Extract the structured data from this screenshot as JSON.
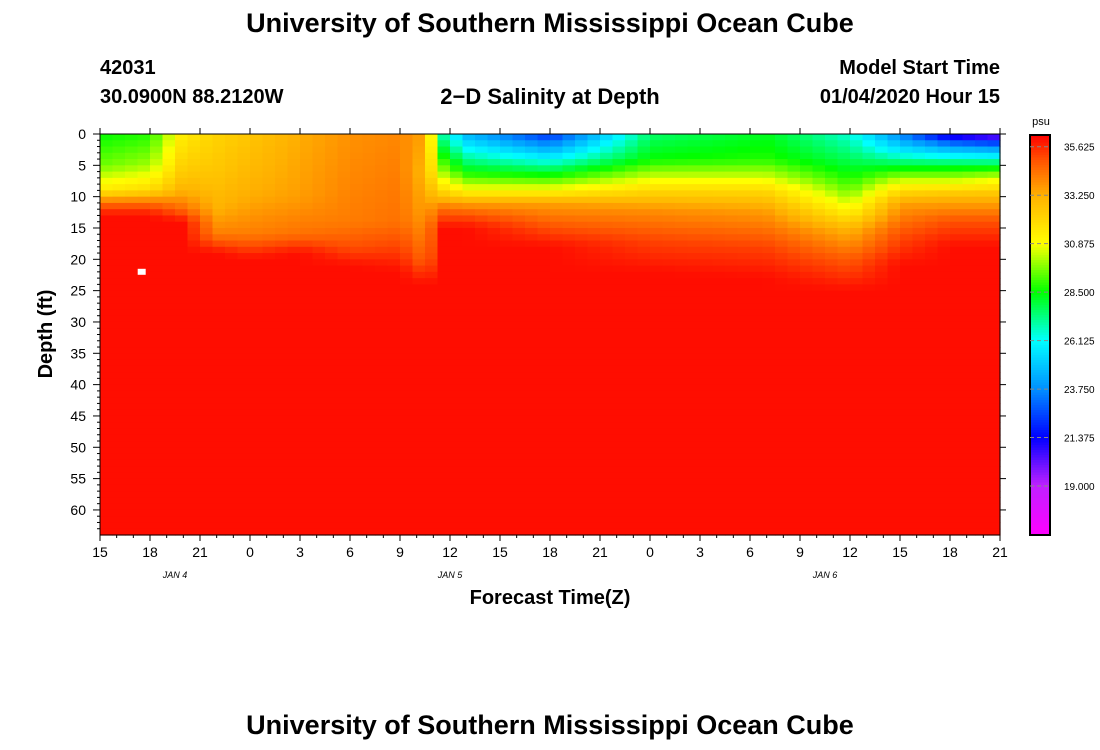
{
  "header": {
    "top_title": "University of Southern Mississippi Ocean Cube",
    "station_id": "42031",
    "station_coords": "30.0900N 88.2120W",
    "chart_title": "2−D Salinity at Depth",
    "model_start_label": "Model Start Time",
    "model_start_value": "01/04/2020 Hour 15",
    "bottom_title": "University of Southern Mississippi Ocean Cube"
  },
  "chart_data": {
    "type": "heatmap",
    "title": "2−D Salinity at Depth",
    "xlabel": "Forecast Time(Z)",
    "ylabel": "Depth (ft)",
    "x_ticks": [
      "15",
      "18",
      "21",
      "0",
      "3",
      "6",
      "9",
      "12",
      "15",
      "18",
      "21",
      "0",
      "3",
      "6",
      "9",
      "12",
      "15",
      "18",
      "21"
    ],
    "x_hours": [
      0,
      3,
      6,
      9,
      12,
      15,
      18,
      21,
      24,
      27,
      30,
      33,
      36,
      39,
      42,
      45,
      48,
      51,
      54
    ],
    "date_labels": [
      {
        "label": "JAN 4",
        "hour": 4.5
      },
      {
        "label": "JAN 5",
        "hour": 21
      },
      {
        "label": "JAN 6",
        "hour": 43.5
      }
    ],
    "y_ticks": [
      0,
      5,
      10,
      15,
      20,
      25,
      30,
      35,
      40,
      45,
      50,
      55,
      60
    ],
    "ylim": [
      0,
      64
    ],
    "xlim": [
      0,
      54
    ],
    "colorbar": {
      "unit": "psu",
      "min": 16.6,
      "max": 36.2,
      "ticks": [
        35.625,
        33.25,
        30.875,
        28.5,
        26.125,
        23.75,
        21.375,
        19.0
      ],
      "tick_labels": [
        "35.625",
        "33.250",
        "30.875",
        "28.500",
        "26.125",
        "23.750",
        "21.375",
        "19.000"
      ]
    },
    "series": [
      {
        "hour": 0,
        "profile": [
          [
            0,
            28.5
          ],
          [
            5,
            29.5
          ],
          [
            9,
            31.5
          ],
          [
            11,
            34.5
          ],
          [
            13,
            36
          ]
        ]
      },
      {
        "hour": 3,
        "profile": [
          [
            0,
            28.8
          ],
          [
            5,
            30.0
          ],
          [
            9,
            32.0
          ],
          [
            11,
            34.5
          ],
          [
            13,
            36
          ]
        ]
      },
      {
        "hour": 5,
        "profile": [
          [
            0,
            31.5
          ],
          [
            6,
            32.5
          ],
          [
            9,
            33.2
          ],
          [
            12,
            34.5
          ],
          [
            14,
            36
          ]
        ]
      },
      {
        "hour": 7,
        "profile": [
          [
            0,
            32.2
          ],
          [
            6,
            32.6
          ],
          [
            12,
            33.2
          ],
          [
            16,
            34.2
          ],
          [
            19,
            36
          ]
        ]
      },
      {
        "hour": 9,
        "profile": [
          [
            0,
            32.6
          ],
          [
            10,
            33.3
          ],
          [
            16,
            34.2
          ],
          [
            20,
            36
          ]
        ]
      },
      {
        "hour": 12,
        "profile": [
          [
            0,
            33.3
          ],
          [
            10,
            33.6
          ],
          [
            16,
            34.4
          ],
          [
            19,
            36
          ]
        ]
      },
      {
        "hour": 15,
        "profile": [
          [
            0,
            33.8
          ],
          [
            14,
            34.2
          ],
          [
            18,
            35.0
          ],
          [
            21,
            36
          ]
        ]
      },
      {
        "hour": 18,
        "profile": [
          [
            0,
            34.0
          ],
          [
            14,
            34.4
          ],
          [
            18,
            35.2
          ],
          [
            22,
            36
          ]
        ]
      },
      {
        "hour": 19.5,
        "profile": [
          [
            0,
            33.5
          ],
          [
            6,
            33.0
          ],
          [
            12,
            33.5
          ],
          [
            20,
            34.6
          ],
          [
            24,
            36
          ]
        ]
      },
      {
        "hour": 20.5,
        "profile": [
          [
            0,
            27.0
          ],
          [
            3,
            28.5
          ],
          [
            6,
            30.0
          ],
          [
            9,
            32.0
          ],
          [
            12,
            34.5
          ],
          [
            15,
            36
          ]
        ]
      },
      {
        "hour": 22,
        "profile": [
          [
            0,
            24.5
          ],
          [
            3,
            26.5
          ],
          [
            6,
            28.5
          ],
          [
            9,
            31.0
          ],
          [
            11,
            33.5
          ],
          [
            13,
            35.0
          ],
          [
            15,
            36
          ]
        ]
      },
      {
        "hour": 27,
        "profile": [
          [
            0,
            22.0
          ],
          [
            3,
            25.0
          ],
          [
            6,
            28.0
          ],
          [
            9,
            31.0
          ],
          [
            11,
            33.5
          ],
          [
            15,
            35.0
          ],
          [
            18,
            36
          ]
        ]
      },
      {
        "hour": 33,
        "profile": [
          [
            0,
            27.5
          ],
          [
            4,
            28.5
          ],
          [
            7,
            30.5
          ],
          [
            9,
            32.0
          ],
          [
            12,
            33.8
          ],
          [
            17,
            35.2
          ],
          [
            22,
            36
          ]
        ]
      },
      {
        "hour": 40,
        "profile": [
          [
            0,
            28.2
          ],
          [
            4,
            28.8
          ],
          [
            7,
            30.5
          ],
          [
            9,
            32.0
          ],
          [
            12,
            33.5
          ],
          [
            18,
            35.2
          ],
          [
            23,
            36
          ]
        ]
      },
      {
        "hour": 45,
        "profile": [
          [
            0,
            26.5
          ],
          [
            5,
            28.0
          ],
          [
            9,
            29.5
          ],
          [
            12,
            31.0
          ],
          [
            15,
            33.0
          ],
          [
            20,
            34.8
          ],
          [
            25,
            36
          ]
        ]
      },
      {
        "hour": 48,
        "profile": [
          [
            0,
            23.5
          ],
          [
            3,
            26.0
          ],
          [
            6,
            29.0
          ],
          [
            8,
            31.0
          ],
          [
            11,
            33.5
          ],
          [
            16,
            35.0
          ],
          [
            21,
            36
          ]
        ]
      },
      {
        "hour": 51,
        "profile": [
          [
            0,
            20.5
          ],
          [
            2,
            24.0
          ],
          [
            5,
            28.0
          ],
          [
            8,
            31.0
          ],
          [
            10,
            33.0
          ],
          [
            14,
            35.0
          ],
          [
            18,
            36
          ]
        ]
      },
      {
        "hour": 54,
        "profile": [
          [
            0,
            19.5
          ],
          [
            2,
            23.5
          ],
          [
            5,
            28.0
          ],
          [
            7,
            30.5
          ],
          [
            10,
            33.0
          ],
          [
            14,
            35.0
          ],
          [
            18,
            36
          ]
        ]
      }
    ],
    "missing_cell": {
      "hour": 2.5,
      "depth": 22
    }
  }
}
